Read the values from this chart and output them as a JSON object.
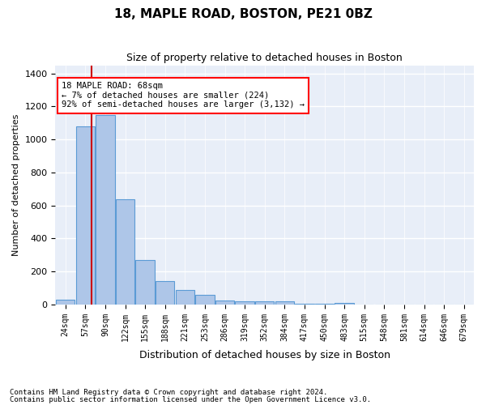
{
  "title": "18, MAPLE ROAD, BOSTON, PE21 0BZ",
  "subtitle": "Size of property relative to detached houses in Boston",
  "xlabel": "Distribution of detached houses by size in Boston",
  "ylabel": "Number of detached properties",
  "bar_color": "#aec6e8",
  "bar_edge_color": "#5b9bd5",
  "background_color": "#e8eef8",
  "grid_color": "#ffffff",
  "property_line_color": "#cc0000",
  "property_size": 68,
  "property_label": "18 MAPLE ROAD: 68sqm",
  "annotation_line1": "← 7% of detached houses are smaller (224)",
  "annotation_line2": "92% of semi-detached houses are larger (3,132) →",
  "bin_labels": [
    "24sqm",
    "57sqm",
    "90sqm",
    "122sqm",
    "155sqm",
    "188sqm",
    "221sqm",
    "253sqm",
    "286sqm",
    "319sqm",
    "352sqm",
    "384sqm",
    "417sqm",
    "450sqm",
    "483sqm",
    "515sqm",
    "548sqm",
    "581sqm",
    "614sqm",
    "646sqm",
    "679sqm"
  ],
  "counts": [
    30,
    1080,
    1150,
    640,
    270,
    140,
    90,
    60,
    25,
    18,
    17,
    18,
    5,
    5,
    10,
    0,
    0,
    0,
    0,
    0,
    0
  ],
  "ylim": [
    0,
    1450
  ],
  "yticks": [
    0,
    200,
    400,
    600,
    800,
    1000,
    1200,
    1400
  ],
  "property_bar_index": 1.33,
  "footer1": "Contains HM Land Registry data © Crown copyright and database right 2024.",
  "footer2": "Contains public sector information licensed under the Open Government Licence v3.0."
}
